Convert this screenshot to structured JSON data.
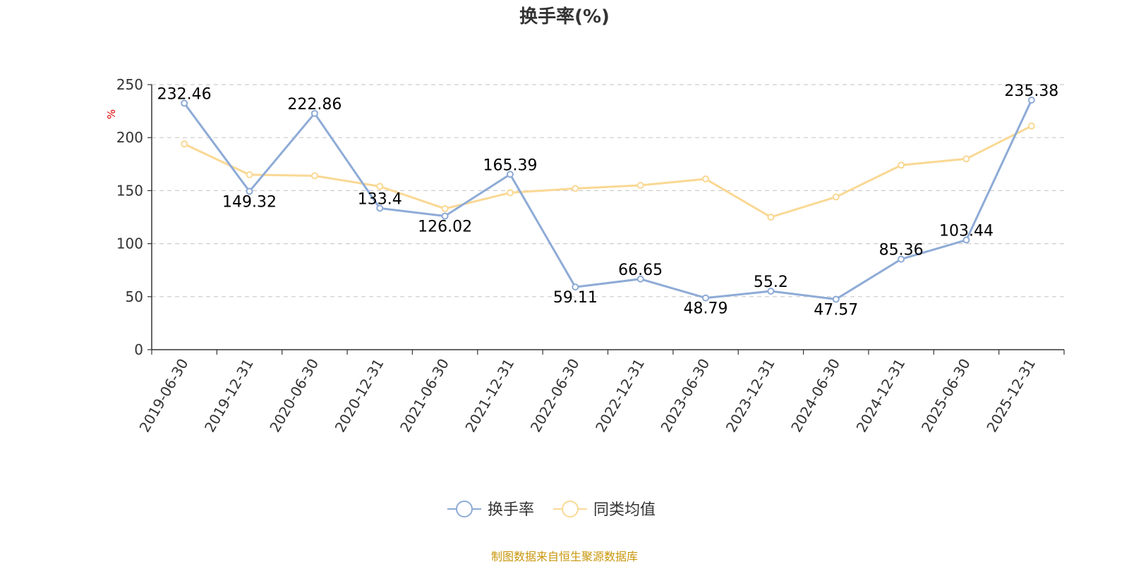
{
  "chart_data": {
    "type": "line",
    "title": "换手率(%)",
    "ylabel": "%",
    "xlabel": "",
    "ylim": [
      0,
      250
    ],
    "yticks": [
      0,
      50,
      100,
      150,
      200,
      250
    ],
    "grid": true,
    "legend_position": "bottom-center",
    "categories": [
      "2019-06-30",
      "2019-12-31",
      "2020-06-30",
      "2020-12-31",
      "2021-06-30",
      "2021-12-31",
      "2022-06-30",
      "2022-12-31",
      "2023-06-30",
      "2023-12-31",
      "2024-06-30",
      "2024-12-31",
      "2025-06-30",
      "2025-12-31"
    ],
    "series": [
      {
        "name": "换手率",
        "color": "#8eabd6",
        "show_labels": true,
        "values": [
          232.46,
          149.32,
          222.86,
          133.4,
          126.02,
          165.39,
          59.11,
          66.65,
          48.79,
          55.2,
          47.57,
          85.36,
          103.44,
          235.38
        ]
      },
      {
        "name": "同类均值",
        "color": "#fad894",
        "show_labels": false,
        "values": [
          194,
          165,
          164,
          154,
          133,
          148,
          152,
          155,
          161,
          125,
          144,
          174,
          180,
          211
        ]
      }
    ]
  },
  "source_text": "制图数据来自恒生聚源数据库",
  "source_color": "#c8960c"
}
